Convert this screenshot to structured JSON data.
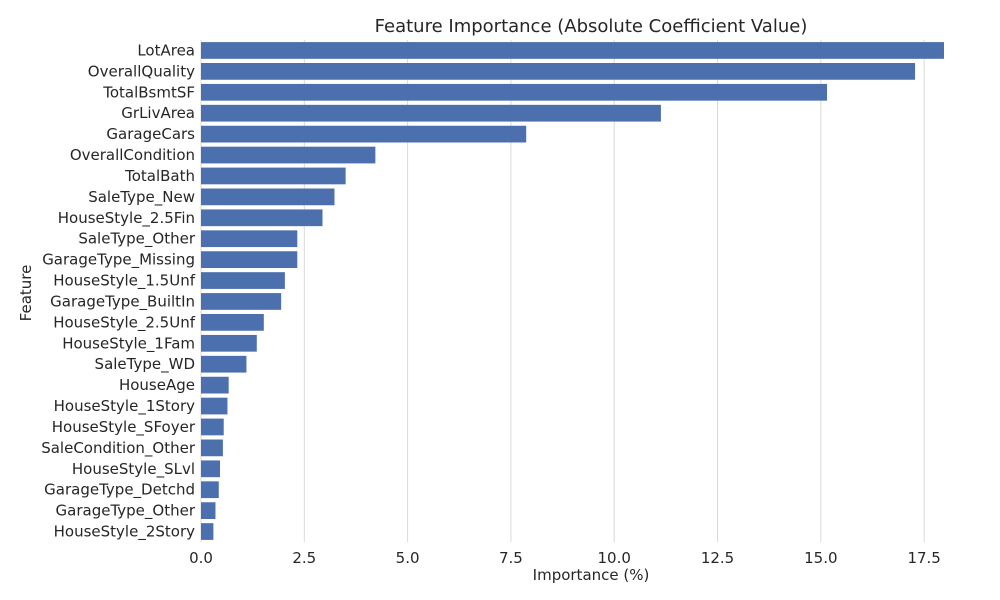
{
  "chart_data": {
    "type": "bar",
    "orientation": "horizontal",
    "title": "Feature Importance (Absolute Coefficient Value)",
    "xlabel": "Importance (%)",
    "ylabel": "Feature",
    "xlim": [
      0,
      18.9
    ],
    "xticks": [
      0.0,
      2.5,
      5.0,
      7.5,
      10.0,
      12.5,
      15.0,
      17.5
    ],
    "xtick_labels": [
      "0.0",
      "2.5",
      "5.0",
      "7.5",
      "10.0",
      "12.5",
      "15.0",
      "17.5"
    ],
    "grid": true,
    "categories": [
      "LotArea",
      "OverallQuality",
      "TotalBsmtSF",
      "GrLivArea",
      "GarageCars",
      "OverallCondition",
      "TotalBath",
      "SaleType_New",
      "HouseStyle_2.5Fin",
      "SaleType_Other",
      "GarageType_Missing",
      "HouseStyle_1.5Unf",
      "GarageType_BuiltIn",
      "HouseStyle_2.5Unf",
      "HouseStyle_1Fam",
      "SaleType_WD",
      "HouseAge",
      "HouseStyle_1Story",
      "HouseStyle_SFoyer",
      "SaleCondition_Other",
      "HouseStyle_SLvl",
      "GarageType_Detchd",
      "GarageType_Other",
      "HouseStyle_2Story"
    ],
    "values": [
      17.98,
      17.28,
      15.15,
      11.13,
      7.87,
      4.22,
      3.5,
      3.23,
      2.94,
      2.33,
      2.33,
      2.03,
      1.94,
      1.52,
      1.35,
      1.1,
      0.67,
      0.64,
      0.55,
      0.53,
      0.46,
      0.43,
      0.35,
      0.3
    ],
    "bar_color": "#4c6fad"
  }
}
